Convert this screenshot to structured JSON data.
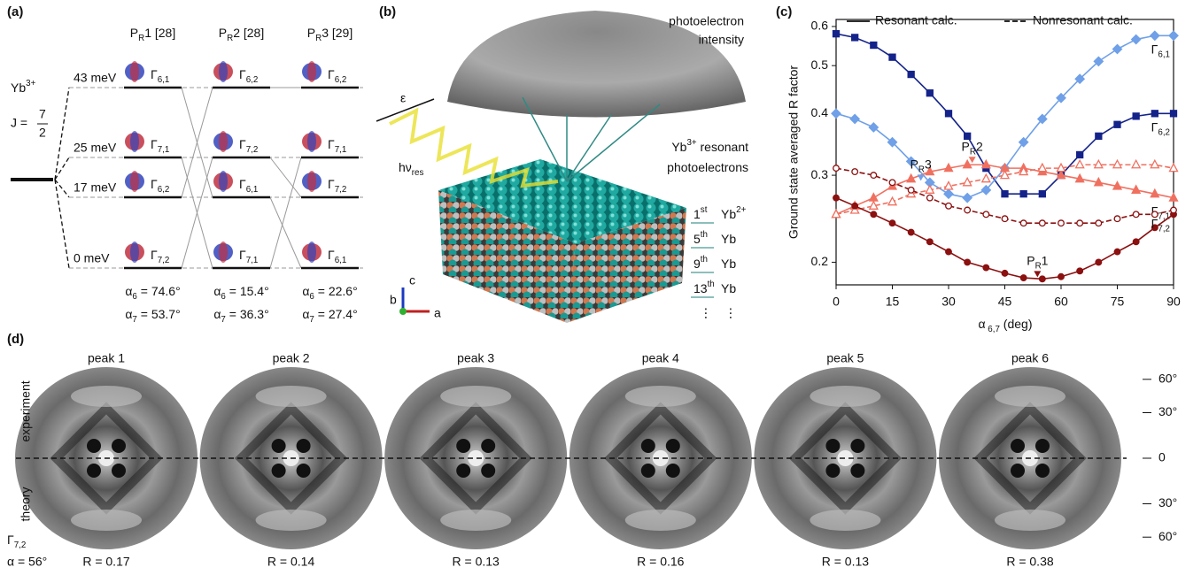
{
  "panel_a": {
    "tag": "(a)",
    "ion": [
      {
        "t": "Yb"
      },
      {
        "sup": "3+"
      }
    ],
    "j": {
      "t": "J =",
      "num": "7",
      "den": "2"
    },
    "energies": [
      "43 meV",
      "25 meV",
      "17 meV",
      "0 meV"
    ],
    "columns": [
      {
        "header": [
          {
            "t": "P"
          },
          {
            "sub": "R"
          },
          {
            "t": "1 [28]"
          }
        ],
        "states": [
          [
            {
              "t": "Γ"
            },
            {
              "sub": "6,1"
            }
          ],
          [
            {
              "t": "Γ"
            },
            {
              "sub": "7,1"
            }
          ],
          [
            {
              "t": "Γ"
            },
            {
              "sub": "6,2"
            }
          ],
          [
            {
              "t": "Γ"
            },
            {
              "sub": "7,2"
            }
          ]
        ],
        "alpha6": [
          {
            "t": "α"
          },
          {
            "sub": "6"
          },
          {
            "t": " = 74.6°"
          }
        ],
        "alpha7": [
          {
            "t": "α"
          },
          {
            "sub": "7"
          },
          {
            "t": " = 53.7°"
          }
        ]
      },
      {
        "header": [
          {
            "t": "P"
          },
          {
            "sub": "R"
          },
          {
            "t": "2 [28]"
          }
        ],
        "states": [
          [
            {
              "t": "Γ"
            },
            {
              "sub": "6,2"
            }
          ],
          [
            {
              "t": "Γ"
            },
            {
              "sub": "7,2"
            }
          ],
          [
            {
              "t": "Γ"
            },
            {
              "sub": "6,1"
            }
          ],
          [
            {
              "t": "Γ"
            },
            {
              "sub": "7,1"
            }
          ]
        ],
        "alpha6": [
          {
            "t": "α"
          },
          {
            "sub": "6"
          },
          {
            "t": " = 15.4°"
          }
        ],
        "alpha7": [
          {
            "t": "α"
          },
          {
            "sub": "7"
          },
          {
            "t": " = 36.3°"
          }
        ]
      },
      {
        "header": [
          {
            "t": "P"
          },
          {
            "sub": "R"
          },
          {
            "t": "3 [29]"
          }
        ],
        "states": [
          [
            {
              "t": "Γ"
            },
            {
              "sub": "6,2"
            }
          ],
          [
            {
              "t": "Γ"
            },
            {
              "sub": "7,1"
            }
          ],
          [
            {
              "t": "Γ"
            },
            {
              "sub": "7,2"
            }
          ],
          [
            {
              "t": "Γ"
            },
            {
              "sub": "6,1"
            }
          ]
        ],
        "alpha6": [
          {
            "t": "α"
          },
          {
            "sub": "6"
          },
          {
            "t": " = 22.6°"
          }
        ],
        "alpha7": [
          {
            "t": "α"
          },
          {
            "sub": "7"
          },
          {
            "t": " = 27.4°"
          }
        ]
      }
    ]
  },
  "panel_b": {
    "tag": "(b)",
    "dome_label": [
      "photoelectron",
      "intensity"
    ],
    "electron_label": [
      [
        {
          "t": "Yb"
        },
        {
          "sup": "3+"
        },
        {
          "t": " resonant"
        }
      ],
      [
        {
          "t": "photoelectrons"
        }
      ]
    ],
    "polarization": "ε",
    "photon": [
      {
        "t": "hν"
      },
      {
        "sub": "res"
      }
    ],
    "layers": [
      {
        "index": [
          {
            "t": "1"
          },
          {
            "sup": "st"
          }
        ],
        "label": [
          {
            "t": "Yb"
          },
          {
            "sup": "2+"
          }
        ]
      },
      {
        "index": [
          {
            "t": "5"
          },
          {
            "sup": "th"
          }
        ],
        "label": [
          {
            "t": "Yb"
          }
        ]
      },
      {
        "index": [
          {
            "t": "9"
          },
          {
            "sup": "th"
          }
        ],
        "label": [
          {
            "t": "Yb"
          }
        ]
      },
      {
        "index": [
          {
            "t": "13"
          },
          {
            "sup": "th"
          }
        ],
        "label": [
          {
            "t": "Yb"
          }
        ]
      }
    ],
    "ellipsis": [
      "⋮",
      "⋮"
    ],
    "axes": [
      "c",
      "b",
      "a"
    ]
  },
  "chart_data": {
    "type": "line",
    "tag": "(c)",
    "y_label": "Ground state averaged R factor",
    "x_label": [
      {
        "t": "α"
      },
      {
        "sub": " 6,7"
      },
      {
        "t": " (deg)"
      }
    ],
    "legend": [
      {
        "name": "Resonant calc.",
        "dashed": false
      },
      {
        "name": "Nonresonant calc.",
        "dashed": true
      }
    ],
    "yscale": "log",
    "xlim": [
      0,
      90
    ],
    "ylim": [
      0.18,
      0.62
    ],
    "xticks": [
      0,
      15,
      30,
      45,
      60,
      75,
      90
    ],
    "yticks": [
      0.2,
      0.3,
      0.4,
      0.5,
      0.6
    ],
    "x": [
      0,
      5,
      10,
      15,
      20,
      25,
      30,
      35,
      40,
      45,
      50,
      55,
      60,
      65,
      70,
      75,
      80,
      85,
      90
    ],
    "series": [
      {
        "label": [
          {
            "t": "Γ"
          },
          {
            "sub": "6,2"
          }
        ],
        "color": "#14238a",
        "marker": "square",
        "open": false,
        "dashed": false,
        "values": [
          0.58,
          0.57,
          0.55,
          0.52,
          0.48,
          0.44,
          0.4,
          0.36,
          0.31,
          0.275,
          0.275,
          0.275,
          0.3,
          0.33,
          0.36,
          0.38,
          0.395,
          0.4,
          0.4
        ]
      },
      {
        "label": [
          {
            "t": "Γ"
          },
          {
            "sub": "6,1"
          }
        ],
        "color": "#6fa0e8",
        "marker": "diamond",
        "open": false,
        "dashed": false,
        "values": [
          0.4,
          0.39,
          0.375,
          0.35,
          0.32,
          0.29,
          0.275,
          0.27,
          0.28,
          0.31,
          0.35,
          0.39,
          0.43,
          0.47,
          0.51,
          0.54,
          0.565,
          0.575,
          0.575
        ]
      },
      {
        "label": [
          {
            "t": "Γ"
          },
          {
            "sub": "7,1"
          }
        ],
        "color": "#f07060",
        "marker": "triangle",
        "open": false,
        "dashed": false,
        "values": [
          0.25,
          0.26,
          0.27,
          0.285,
          0.295,
          0.305,
          0.31,
          0.315,
          0.315,
          0.31,
          0.31,
          0.305,
          0.3,
          0.295,
          0.29,
          0.285,
          0.28,
          0.275,
          0.27
        ]
      },
      {
        "color": "#f07060",
        "marker": "triangle",
        "open": true,
        "dashed": true,
        "values": [
          0.25,
          0.255,
          0.26,
          0.265,
          0.275,
          0.28,
          0.285,
          0.29,
          0.295,
          0.3,
          0.305,
          0.31,
          0.31,
          0.315,
          0.315,
          0.315,
          0.315,
          0.315,
          0.31
        ]
      },
      {
        "color": "#8b1010",
        "marker": "circle",
        "open": false,
        "dashed": false,
        "values": [
          0.27,
          0.26,
          0.25,
          0.24,
          0.23,
          0.22,
          0.21,
          0.2,
          0.195,
          0.19,
          0.186,
          0.185,
          0.187,
          0.192,
          0.2,
          0.21,
          0.22,
          0.235,
          0.25
        ]
      },
      {
        "label": [
          {
            "t": "Γ"
          },
          {
            "sub": "7,2"
          }
        ],
        "color": "#8b1010",
        "marker": "circle",
        "open": true,
        "dashed": true,
        "values": [
          0.31,
          0.305,
          0.3,
          0.29,
          0.28,
          0.27,
          0.26,
          0.255,
          0.25,
          0.245,
          0.24,
          0.24,
          0.24,
          0.24,
          0.24,
          0.245,
          0.25,
          0.25,
          0.255
        ]
      }
    ],
    "points": [
      {
        "label": [
          {
            "t": "P"
          },
          {
            "sub": "R"
          },
          {
            "t": "1"
          }
        ],
        "x": 53.7,
        "y": 0.185,
        "color": "#8b1010"
      },
      {
        "label": [
          {
            "t": "P"
          },
          {
            "sub": "R"
          },
          {
            "t": "2"
          }
        ],
        "x": 36.3,
        "y": 0.315,
        "color": "#f07060"
      },
      {
        "label": [
          {
            "t": "P"
          },
          {
            "sub": "R"
          },
          {
            "t": "3"
          }
        ],
        "x": 22.6,
        "y": 0.29,
        "color": "#6fa0e8"
      }
    ]
  },
  "panel_d": {
    "tag": "(d)",
    "rows": [
      "experiment",
      "theory"
    ],
    "state": [
      {
        "t": "Γ"
      },
      {
        "sub": "7,2"
      }
    ],
    "alpha": "α = 56°",
    "peaks": [
      {
        "name": "peak 1",
        "r": "R = 0.17"
      },
      {
        "name": "peak 2",
        "r": "R = 0.14"
      },
      {
        "name": "peak 3",
        "r": "R = 0.13"
      },
      {
        "name": "peak 4",
        "r": "R = 0.16"
      },
      {
        "name": "peak 5",
        "r": "R = 0.13"
      },
      {
        "name": "peak 6",
        "r": "R = 0.38"
      }
    ],
    "angle_ticks": [
      {
        "value": 60,
        "label": "60°"
      },
      {
        "value": 30,
        "label": "30°"
      },
      0,
      {
        "value": -30,
        "label": "30°"
      },
      {
        "value": -60,
        "label": "60°"
      }
    ]
  }
}
